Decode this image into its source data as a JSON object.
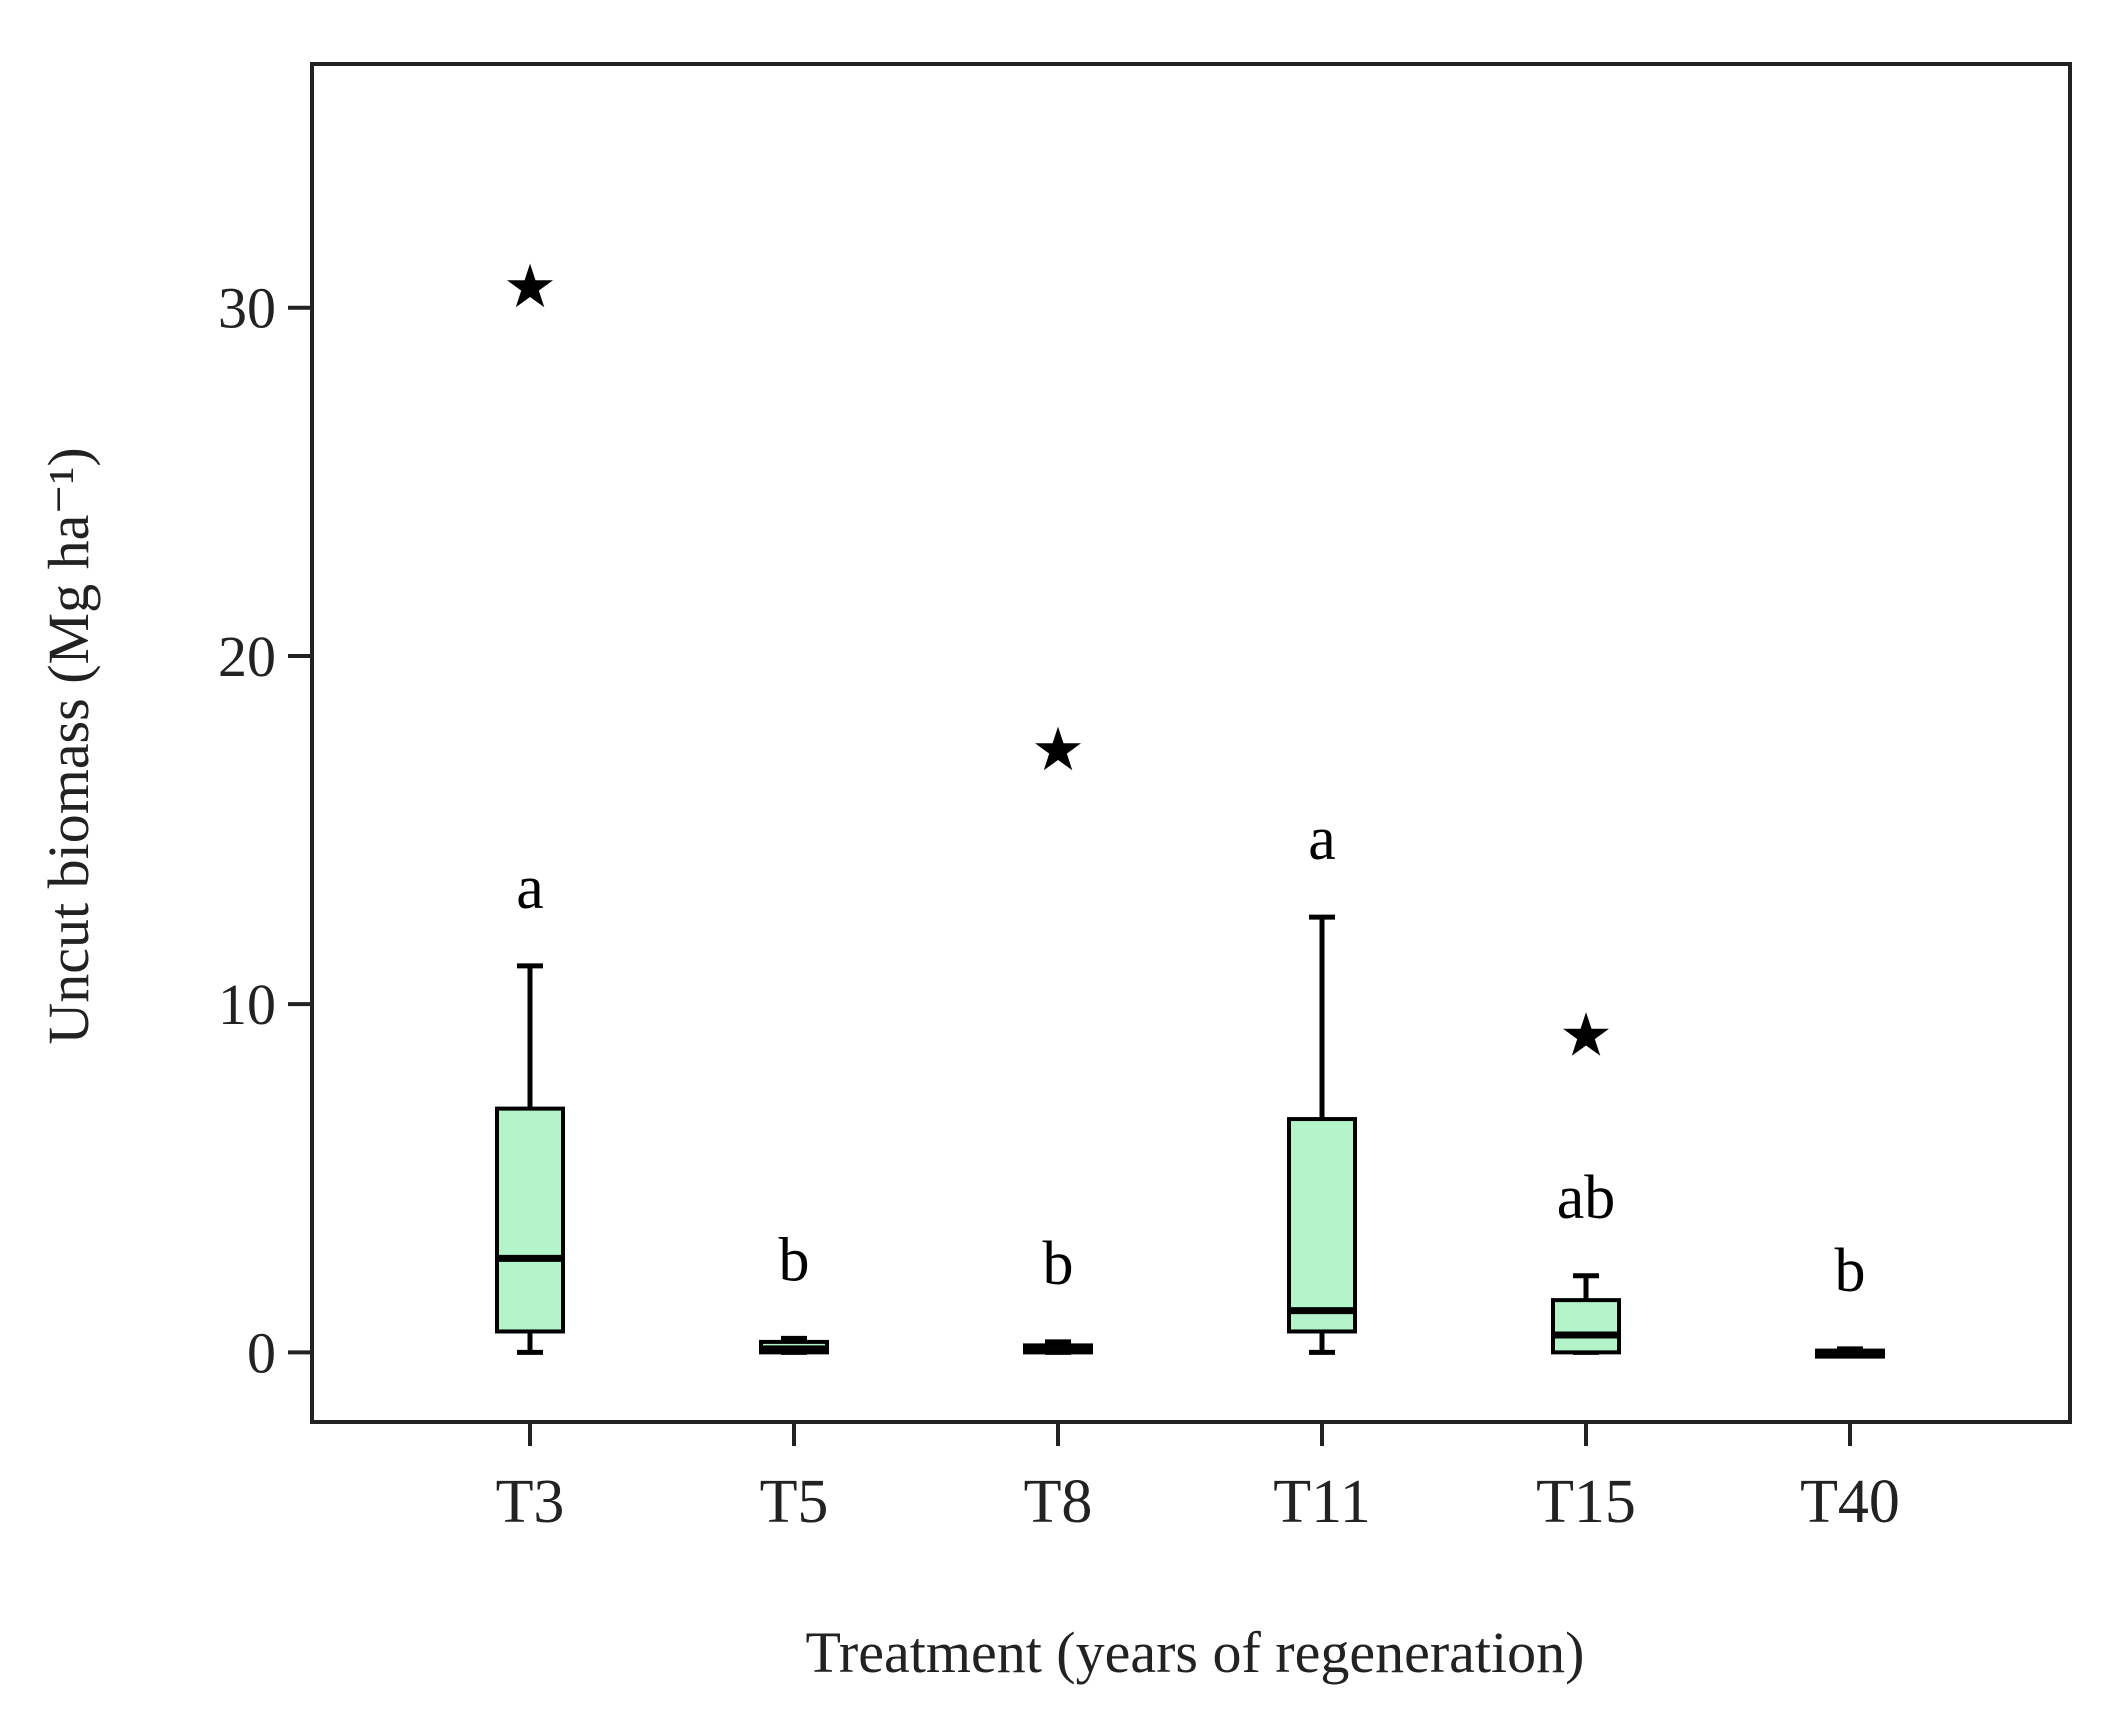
{
  "chart_data": {
    "type": "boxplot",
    "title": "",
    "xlabel": "Treatment (years of regeneration)",
    "ylabel": "Uncut biomass (Mg ha⁻¹)",
    "ylim": [
      -2,
      37
    ],
    "yticks": [
      0,
      10,
      20,
      30
    ],
    "categories": [
      "T3",
      "T5",
      "T8",
      "T11",
      "T15",
      "T40"
    ],
    "box_color": "#b3f5c8",
    "line_color": "#000000",
    "outlier_marker": "★",
    "series": [
      {
        "name": "T3",
        "min": 0,
        "q1": 0.6,
        "median": 2.7,
        "q3": 7.0,
        "max": 11.1,
        "outliers": [
          30.6
        ],
        "group": "a"
      },
      {
        "name": "T5",
        "min": 0,
        "q1": 0,
        "median": 0.1,
        "q3": 0.3,
        "max": 0.4,
        "outliers": [],
        "group": "b"
      },
      {
        "name": "T8",
        "min": 0,
        "q1": 0,
        "median": 0.05,
        "q3": 0.2,
        "max": 0.3,
        "outliers": [
          17.3
        ],
        "group": "b"
      },
      {
        "name": "T11",
        "min": 0,
        "q1": 0.6,
        "median": 1.2,
        "q3": 6.7,
        "max": 12.5,
        "outliers": [],
        "group": "a"
      },
      {
        "name": "T15",
        "min": 0,
        "q1": 0,
        "median": 0.5,
        "q3": 1.5,
        "max": 2.2,
        "outliers": [
          9.1
        ],
        "group": "ab"
      },
      {
        "name": "T40",
        "min": 0,
        "q1": 0,
        "median": 0,
        "q3": 0.05,
        "max": 0.1,
        "outliers": [],
        "group": "b"
      }
    ]
  }
}
